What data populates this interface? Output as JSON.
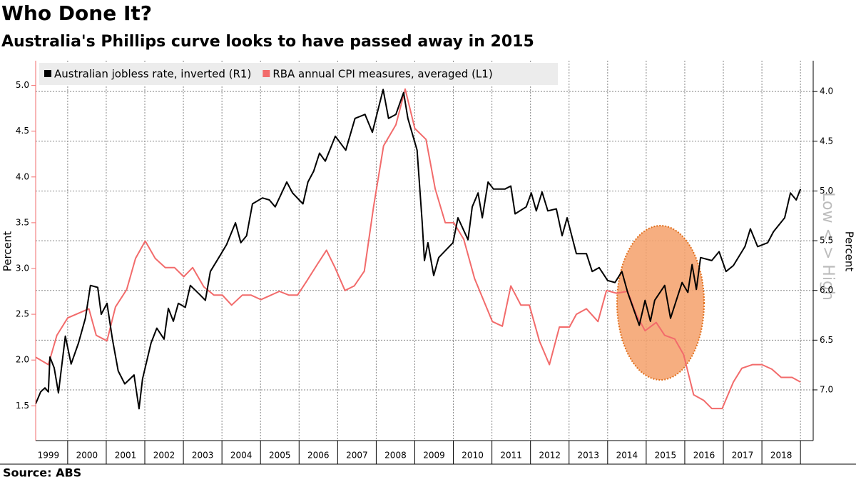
{
  "chart_data": {
    "type": "line",
    "title": "Who Done It?",
    "subtitle": "Australia's Phillips curve looks to have passed away in 2015",
    "source": "Source: ABS",
    "y_label": "Percent",
    "y2_label": "Percent",
    "annotation": "Low < > High",
    "xlim": [
      1999.17,
      2019.33
    ],
    "xticks": [
      {
        "value": 1999,
        "label": "1999"
      },
      {
        "value": 2000,
        "label": "2000"
      },
      {
        "value": 2001,
        "label": "2001"
      },
      {
        "value": 2002,
        "label": "2002"
      },
      {
        "value": 2003,
        "label": "2003"
      },
      {
        "value": 2004,
        "label": "2004"
      },
      {
        "value": 2005,
        "label": "2005"
      },
      {
        "value": 2006,
        "label": "2006"
      },
      {
        "value": 2007,
        "label": "2007"
      },
      {
        "value": 2008,
        "label": "2008"
      },
      {
        "value": 2009,
        "label": "2009"
      },
      {
        "value": 2010,
        "label": "2010"
      },
      {
        "value": 2011,
        "label": "2011"
      },
      {
        "value": 2012,
        "label": "2012"
      },
      {
        "value": 2013,
        "label": "2013"
      },
      {
        "value": 2014,
        "label": "2014"
      },
      {
        "value": 2015,
        "label": "2015"
      },
      {
        "value": 2016,
        "label": "2016"
      },
      {
        "value": 2017,
        "label": "2017"
      },
      {
        "value": 2018,
        "label": "2018"
      }
    ],
    "ylim": [
      1.12,
      5.27
    ],
    "yticks": [
      {
        "value": 1.5,
        "label": "1.5"
      },
      {
        "value": 2,
        "label": "2.0"
      },
      {
        "value": 2.5,
        "label": "2.5"
      },
      {
        "value": 3,
        "label": "3.0"
      },
      {
        "value": 3.5,
        "label": "3.5"
      },
      {
        "value": 4,
        "label": "4.0"
      },
      {
        "value": 4.5,
        "label": "4.5"
      },
      {
        "value": 5,
        "label": "5.0"
      }
    ],
    "y2lim": [
      7.51,
      3.69
    ],
    "y2ticks": [
      {
        "value": 4,
        "label": "4.0"
      },
      {
        "value": 4.5,
        "label": "4.5"
      },
      {
        "value": 5,
        "label": "5.0"
      },
      {
        "value": 5.5,
        "label": "5.5"
      },
      {
        "value": 6,
        "label": "6.0"
      },
      {
        "value": 6.5,
        "label": "6.5"
      },
      {
        "value": 7,
        "label": "7.0"
      }
    ],
    "grid": true,
    "series": [
      {
        "name": "Australian jobless rate, inverted (R1)",
        "color": "#000000",
        "axis": "y2",
        "x": [
          1999.17,
          1999.3,
          1999.41,
          1999.5,
          1999.54,
          1999.65,
          1999.76,
          1999.94,
          2000.09,
          2000.28,
          2000.46,
          2000.59,
          2000.78,
          2000.87,
          2001.02,
          2001.16,
          2001.31,
          2001.48,
          2001.72,
          2001.85,
          2001.94,
          2002.16,
          2002.31,
          2002.5,
          2002.61,
          2002.74,
          2002.87,
          2003.05,
          2003.18,
          2003.42,
          2003.57,
          2003.7,
          2003.98,
          2004.12,
          2004.35,
          2004.49,
          2004.64,
          2004.79,
          2005.05,
          2005.23,
          2005.38,
          2005.68,
          2005.83,
          2006.1,
          2006.23,
          2006.38,
          2006.53,
          2006.68,
          2006.94,
          2007.21,
          2007.45,
          2007.71,
          2007.9,
          2008.18,
          2008.32,
          2008.51,
          2008.71,
          2008.82,
          2009.06,
          2009.19,
          2009.25,
          2009.34,
          2009.49,
          2009.62,
          2009.99,
          2010.12,
          2010.38,
          2010.49,
          2010.64,
          2010.75,
          2010.9,
          2011.04,
          2011.34,
          2011.49,
          2011.6,
          2011.89,
          2012.02,
          2012.15,
          2012.3,
          2012.45,
          2012.67,
          2012.82,
          2012.95,
          2013.19,
          2013.45,
          2013.6,
          2013.78,
          2014.0,
          2014.19,
          2014.37,
          2014.52,
          2014.82,
          2014.97,
          2015.11,
          2015.22,
          2015.48,
          2015.63,
          2015.93,
          2016.08,
          2016.19,
          2016.3,
          2016.41,
          2016.7,
          2016.89,
          2017.07,
          2017.26,
          2017.56,
          2017.7,
          2017.89,
          2018.15,
          2018.3,
          2018.59,
          2018.74,
          2018.89,
          2019.0
        ],
        "values": [
          7.14,
          7.02,
          6.98,
          7.02,
          6.67,
          6.78,
          7.03,
          6.46,
          6.74,
          6.53,
          6.28,
          5.95,
          5.97,
          6.24,
          6.13,
          6.49,
          6.81,
          6.94,
          6.85,
          7.19,
          6.89,
          6.53,
          6.38,
          6.49,
          6.18,
          6.31,
          6.13,
          6.17,
          5.95,
          6.04,
          6.1,
          5.81,
          5.63,
          5.54,
          5.32,
          5.52,
          5.45,
          5.13,
          5.07,
          5.09,
          5.16,
          4.91,
          5.02,
          5.13,
          4.91,
          4.8,
          4.62,
          4.7,
          4.45,
          4.59,
          4.27,
          4.23,
          4.41,
          3.98,
          4.27,
          4.23,
          4.01,
          4.27,
          4.59,
          5.31,
          5.7,
          5.52,
          5.85,
          5.67,
          5.52,
          5.27,
          5.49,
          5.16,
          5.02,
          5.27,
          4.91,
          4.98,
          4.98,
          4.95,
          5.23,
          5.16,
          5.02,
          5.2,
          5.01,
          5.2,
          5.18,
          5.45,
          5.27,
          5.63,
          5.63,
          5.81,
          5.77,
          5.9,
          5.92,
          5.81,
          6.02,
          6.35,
          6.1,
          6.31,
          6.1,
          5.95,
          6.28,
          5.92,
          6.02,
          5.74,
          5.99,
          5.67,
          5.7,
          5.61,
          5.81,
          5.75,
          5.56,
          5.38,
          5.56,
          5.52,
          5.41,
          5.27,
          5.02,
          5.09,
          4.98
        ]
      },
      {
        "name": "RBA annual CPI measures, averaged  (L1)",
        "color": "#f26b6b",
        "axis": "y",
        "x": [
          1999.17,
          1999.5,
          1999.72,
          2000.0,
          2000.55,
          2000.74,
          2001.02,
          2001.24,
          2001.53,
          2001.76,
          2002.01,
          2002.27,
          2002.53,
          2002.77,
          2003.01,
          2003.24,
          2003.53,
          2003.79,
          2004.01,
          2004.25,
          2004.53,
          2004.75,
          2005.01,
          2005.49,
          2005.73,
          2005.96,
          2006.18,
          2006.48,
          2006.71,
          2006.93,
          2007.19,
          2007.43,
          2007.69,
          2007.93,
          2008.19,
          2008.51,
          2008.75,
          2009.0,
          2009.29,
          2009.53,
          2009.79,
          2010.01,
          2010.27,
          2010.55,
          2011.01,
          2011.27,
          2011.49,
          2011.75,
          2011.97,
          2012.23,
          2012.49,
          2012.75,
          2013.01,
          2013.19,
          2013.45,
          2013.75,
          2013.97,
          2014.23,
          2014.52,
          2014.74,
          2014.97,
          2015.26,
          2015.48,
          2015.74,
          2015.97,
          2016.23,
          2016.49,
          2016.7,
          2016.97,
          2017.26,
          2017.48,
          2017.76,
          2018.0,
          2018.26,
          2018.5,
          2018.78,
          2019.0
        ],
        "values": [
          2.03,
          1.95,
          2.27,
          2.46,
          2.56,
          2.27,
          2.21,
          2.58,
          2.77,
          3.11,
          3.3,
          3.11,
          3.01,
          3.01,
          2.91,
          3.01,
          2.8,
          2.71,
          2.71,
          2.6,
          2.71,
          2.71,
          2.66,
          2.75,
          2.71,
          2.71,
          2.85,
          3.05,
          3.2,
          3.01,
          2.76,
          2.81,
          2.97,
          3.67,
          4.34,
          4.57,
          4.96,
          4.53,
          4.41,
          3.87,
          3.5,
          3.5,
          3.32,
          2.89,
          2.42,
          2.37,
          2.81,
          2.6,
          2.6,
          2.21,
          1.95,
          2.36,
          2.36,
          2.5,
          2.56,
          2.42,
          2.76,
          2.73,
          2.75,
          2.5,
          2.32,
          2.41,
          2.27,
          2.23,
          2.06,
          1.62,
          1.56,
          1.47,
          1.47,
          1.76,
          1.91,
          1.95,
          1.95,
          1.9,
          1.81,
          1.81,
          1.76
        ]
      }
    ]
  }
}
